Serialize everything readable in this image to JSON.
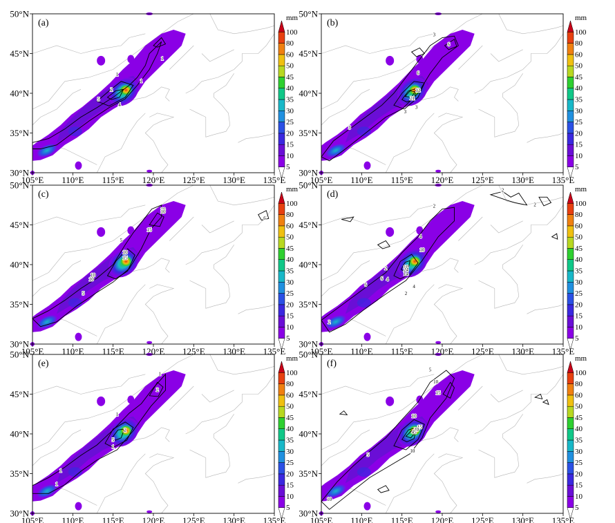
{
  "figure": {
    "panels": [
      {
        "label": "(a)",
        "contour_labels": [
          "1",
          "1",
          "2",
          "5",
          "4",
          "1"
        ]
      },
      {
        "label": "(b)",
        "contour_labels": [
          "3",
          "6",
          "6",
          "12",
          "21",
          "3",
          "3",
          "3"
        ]
      },
      {
        "label": "(c)",
        "contour_labels": [
          "6",
          "10",
          "15",
          "5",
          "10",
          "15",
          "10",
          "10",
          "5",
          "10"
        ]
      },
      {
        "label": "(d)",
        "contour_labels": [
          "2",
          "2",
          "4",
          "10",
          "2",
          "4",
          "10",
          "24",
          "14",
          "6",
          "6",
          "4",
          "2",
          "2",
          "2"
        ]
      },
      {
        "label": "(e)",
        "contour_labels": [
          "1",
          "2",
          "1",
          "2",
          "5",
          "1",
          "1",
          "1"
        ]
      },
      {
        "label": "(f)",
        "contour_labels": [
          "5",
          "10",
          "15",
          "10",
          "15",
          "30",
          "45",
          "10",
          "5",
          "10"
        ]
      }
    ],
    "lat_labels": [
      "30°N",
      "35°N",
      "40°N",
      "45°N",
      "50°N"
    ],
    "lon_labels": [
      "105°E",
      "110°E",
      "115°E",
      "120°E",
      "125°E",
      "130°E",
      "135°E"
    ],
    "lat_values": [
      30,
      35,
      40,
      45,
      50
    ],
    "lon_values": [
      105,
      110,
      115,
      120,
      125,
      130,
      135
    ],
    "colorbar": {
      "unit": "mm",
      "levels": [
        "5",
        "10",
        "15",
        "20",
        "25",
        "30",
        "35",
        "40",
        "45",
        "50",
        "60",
        "80",
        "100"
      ],
      "colors": [
        "#ffffff",
        "#8a00e6",
        "#6a0ed6",
        "#3b28e0",
        "#2b50e6",
        "#2090e0",
        "#18b8c8",
        "#10c888",
        "#2ed030",
        "#b8d820",
        "#f0c010",
        "#f08010",
        "#e84010",
        "#c80018"
      ]
    }
  }
}
